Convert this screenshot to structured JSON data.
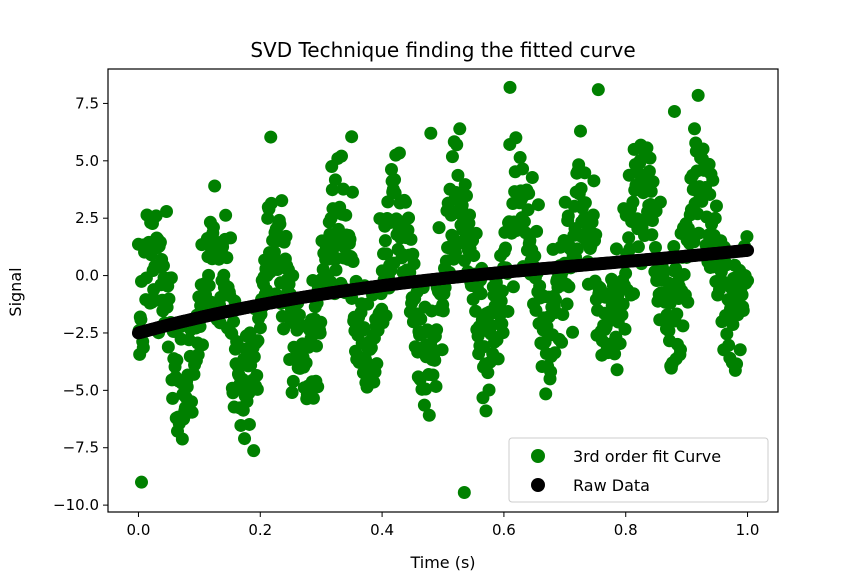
{
  "chart_data": {
    "type": "scatter",
    "title": "SVD Technique finding the fitted curve",
    "xlabel": "Time (s)",
    "ylabel": "Signal",
    "xlim": [
      -0.05,
      1.05
    ],
    "ylim": [
      -10.3,
      9.0
    ],
    "xticks": [
      0.0,
      0.2,
      0.4,
      0.6,
      0.8,
      1.0
    ],
    "xtick_labels": [
      "0.0",
      "0.2",
      "0.4",
      "0.6",
      "0.8",
      "1.0"
    ],
    "yticks": [
      -10.0,
      -7.5,
      -5.0,
      -2.5,
      0.0,
      2.5,
      5.0,
      7.5
    ],
    "ytick_labels": [
      "−10.0",
      "−7.5",
      "−5.0",
      "−2.5",
      "0.0",
      "2.5",
      "5.0",
      "7.5"
    ],
    "grid": false,
    "legend_position": "lower-right",
    "series": [
      {
        "name": "3rd order fit Curve",
        "color": "#008000",
        "marker": "circle",
        "sampling": {
          "x_start": 0.0,
          "x_end": 1.0,
          "count": 1000,
          "trend_cubic": [
            -2.5,
            7.3,
            -6.5,
            2.8
          ],
          "oscillation_amplitude": 3.0,
          "oscillation_frequency_hz": 10,
          "noise_std": 1.4,
          "seed": 7
        },
        "highlight_points": [
          {
            "x": 0.61,
            "y": 8.2
          },
          {
            "x": 0.755,
            "y": 8.1
          },
          {
            "x": 0.535,
            "y": -9.45
          },
          {
            "x": 0.005,
            "y": -9.0
          },
          {
            "x": 0.35,
            "y": 6.05
          },
          {
            "x": 0.48,
            "y": 6.2
          },
          {
            "x": 0.88,
            "y": 7.15
          }
        ]
      },
      {
        "name": "Raw Data",
        "color": "#000000",
        "marker": "circle",
        "curve_cubic": [
          -2.5,
          7.3,
          -6.5,
          2.8
        ],
        "x_start": 0.0,
        "x_end": 1.0,
        "count": 400
      }
    ]
  }
}
